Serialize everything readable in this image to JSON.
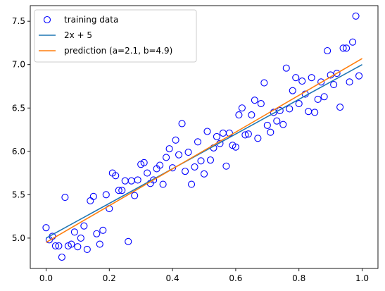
{
  "chart_data": {
    "type": "scatter",
    "title": "",
    "xlabel": "",
    "ylabel": "",
    "xlim": [
      -0.05,
      1.05
    ],
    "ylim": [
      4.65,
      7.68
    ],
    "xticks": [
      0.0,
      0.2,
      0.4,
      0.6,
      0.8,
      1.0
    ],
    "xtick_labels": [
      "0.0",
      "0.2",
      "0.4",
      "0.6",
      "0.8",
      "1.0"
    ],
    "yticks": [
      5.0,
      5.5,
      6.0,
      6.5,
      7.0,
      7.5
    ],
    "ytick_labels": [
      "5.0",
      "5.5",
      "6.0",
      "6.5",
      "7.0",
      "7.5"
    ],
    "grid": false,
    "legend": {
      "position": "top-left"
    },
    "series": [
      {
        "name": "training data",
        "kind": "scatter",
        "marker": "open-circle",
        "color": "#0000ff",
        "points": [
          [
            0.0,
            5.12
          ],
          [
            0.01,
            4.98
          ],
          [
            0.02,
            5.02
          ],
          [
            0.03,
            4.91
          ],
          [
            0.04,
            4.91
          ],
          [
            0.05,
            4.78
          ],
          [
            0.06,
            5.47
          ],
          [
            0.07,
            4.91
          ],
          [
            0.08,
            4.93
          ],
          [
            0.09,
            5.07
          ],
          [
            0.1,
            4.9
          ],
          [
            0.11,
            5.0
          ],
          [
            0.12,
            5.14
          ],
          [
            0.13,
            4.87
          ],
          [
            0.14,
            5.43
          ],
          [
            0.15,
            5.48
          ],
          [
            0.16,
            5.05
          ],
          [
            0.17,
            4.93
          ],
          [
            0.18,
            5.09
          ],
          [
            0.19,
            5.5
          ],
          [
            0.2,
            5.34
          ],
          [
            0.21,
            5.75
          ],
          [
            0.22,
            5.72
          ],
          [
            0.23,
            5.55
          ],
          [
            0.24,
            5.55
          ],
          [
            0.25,
            5.66
          ],
          [
            0.26,
            4.96
          ],
          [
            0.27,
            5.66
          ],
          [
            0.28,
            5.49
          ],
          [
            0.29,
            5.67
          ],
          [
            0.3,
            5.85
          ],
          [
            0.31,
            5.87
          ],
          [
            0.32,
            5.75
          ],
          [
            0.33,
            5.63
          ],
          [
            0.34,
            5.67
          ],
          [
            0.35,
            5.8
          ],
          [
            0.36,
            5.84
          ],
          [
            0.37,
            5.62
          ],
          [
            0.38,
            5.93
          ],
          [
            0.39,
            6.03
          ],
          [
            0.4,
            5.81
          ],
          [
            0.41,
            6.13
          ],
          [
            0.42,
            5.96
          ],
          [
            0.43,
            6.32
          ],
          [
            0.44,
            5.77
          ],
          [
            0.45,
            5.99
          ],
          [
            0.46,
            5.62
          ],
          [
            0.47,
            5.82
          ],
          [
            0.48,
            6.11
          ],
          [
            0.49,
            5.89
          ],
          [
            0.5,
            5.74
          ],
          [
            0.51,
            6.23
          ],
          [
            0.52,
            5.9
          ],
          [
            0.53,
            6.04
          ],
          [
            0.54,
            6.17
          ],
          [
            0.55,
            6.09
          ],
          [
            0.56,
            6.21
          ],
          [
            0.57,
            5.83
          ],
          [
            0.58,
            6.21
          ],
          [
            0.59,
            6.07
          ],
          [
            0.6,
            6.05
          ],
          [
            0.61,
            6.42
          ],
          [
            0.62,
            6.5
          ],
          [
            0.63,
            6.19
          ],
          [
            0.64,
            6.2
          ],
          [
            0.65,
            6.42
          ],
          [
            0.66,
            6.59
          ],
          [
            0.67,
            6.15
          ],
          [
            0.68,
            6.55
          ],
          [
            0.69,
            6.79
          ],
          [
            0.7,
            6.3
          ],
          [
            0.71,
            6.22
          ],
          [
            0.72,
            6.45
          ],
          [
            0.73,
            6.35
          ],
          [
            0.74,
            6.47
          ],
          [
            0.75,
            6.31
          ],
          [
            0.76,
            6.96
          ],
          [
            0.77,
            6.49
          ],
          [
            0.78,
            6.7
          ],
          [
            0.79,
            6.85
          ],
          [
            0.8,
            6.55
          ],
          [
            0.81,
            6.81
          ],
          [
            0.82,
            6.66
          ],
          [
            0.83,
            6.46
          ],
          [
            0.84,
            6.85
          ],
          [
            0.85,
            6.45
          ],
          [
            0.86,
            6.6
          ],
          [
            0.87,
            6.8
          ],
          [
            0.88,
            6.63
          ],
          [
            0.89,
            7.16
          ],
          [
            0.9,
            6.88
          ],
          [
            0.91,
            6.77
          ],
          [
            0.92,
            6.9
          ],
          [
            0.93,
            6.51
          ],
          [
            0.94,
            7.19
          ],
          [
            0.95,
            7.19
          ],
          [
            0.96,
            6.8
          ],
          [
            0.97,
            7.26
          ],
          [
            0.98,
            7.56
          ],
          [
            0.99,
            6.87
          ]
        ]
      },
      {
        "name": "2x + 5",
        "kind": "line",
        "color": "#1f77b4",
        "x": [
          0.0,
          1.0
        ],
        "y": [
          5.0,
          7.0
        ]
      },
      {
        "name": "prediction (a=2.1, b=4.9)",
        "kind": "line",
        "color": "#ff7f0e",
        "x": [
          0.0,
          1.0
        ],
        "y": [
          4.95,
          7.07
        ]
      }
    ]
  }
}
